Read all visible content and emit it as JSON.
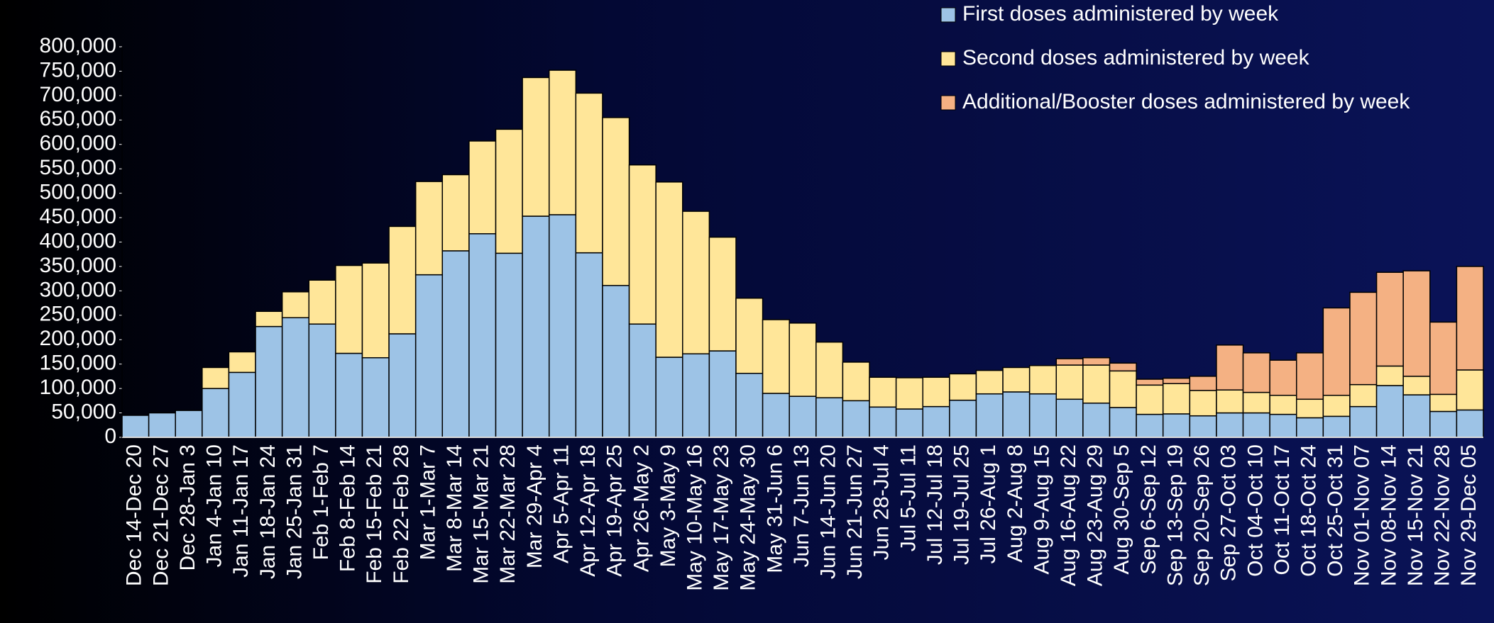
{
  "chart_data": {
    "type": "stacked_bar",
    "categories": [
      "Dec 14-Dec 20",
      "Dec 21-Dec 27",
      "Dec 28-Jan 3",
      "Jan 4-Jan 10",
      "Jan 11-Jan 17",
      "Jan 18-Jan 24",
      "Jan 25-Jan 31",
      "Feb 1-Feb 7",
      "Feb 8-Feb 14",
      "Feb 15-Feb 21",
      "Feb 22-Feb 28",
      "Mar 1-Mar 7",
      "Mar 8-Mar 14",
      "Mar 15-Mar 21",
      "Mar 22-Mar 28",
      "Mar 29-Apr 4",
      "Apr 5-Apr 11",
      "Apr 12-Apr 18",
      "Apr 19-Apr 25",
      "Apr 26-May 2",
      "May 3-May 9",
      "May 10-May 16",
      "May 17-May 23",
      "May 24-May 30",
      "May 31-Jun 6",
      "Jun 7-Jun 13",
      "Jun 14-Jun 20",
      "Jun 21-Jun 27",
      "Jun 28-Jul 4",
      "Jul 5-Jul 11",
      "Jul 12-Jul 18",
      "Jul 19-Jul 25",
      "Jul 26-Aug 1",
      "Aug 2-Aug 8",
      "Aug 9-Aug 15",
      "Aug 16-Aug 22",
      "Aug 23-Aug 29",
      "Aug 30-Sep 5",
      "Sep 6-Sep 12",
      "Sep 13-Sep 19",
      "Sep 20-Sep 26",
      "Sep 27-Oct 03",
      "Oct 04-Oct 10",
      "Oct 11-Oct 17",
      "Oct 18-Oct 24",
      "Oct 25-Oct 31",
      "Nov 01-Nov 07",
      "Nov 08-Nov 14",
      "Nov 15-Nov 21",
      "Nov 22-Nov 28",
      "Nov 29-Dec 05"
    ],
    "series": [
      {
        "name": "First doses administered by week",
        "color": "#9dc3e6",
        "values": [
          45000,
          50000,
          55000,
          100000,
          133000,
          227000,
          245000,
          232000,
          172000,
          163000,
          212000,
          333000,
          382000,
          417000,
          377000,
          453000,
          456000,
          378000,
          311000,
          232000,
          164000,
          171000,
          177000,
          131000,
          90000,
          84000,
          81000,
          75000,
          62000,
          58000,
          63000,
          76000,
          89000,
          93000,
          89000,
          78000,
          70000,
          61000,
          47000,
          48000,
          44000,
          50000,
          50000,
          47000,
          40000,
          43000,
          63000,
          106000,
          87000,
          53000,
          56000
        ]
      },
      {
        "name": "Second doses administered by week",
        "color": "#ffe699",
        "values": [
          0,
          0,
          0,
          43000,
          42000,
          31000,
          53000,
          90000,
          180000,
          194000,
          220000,
          191000,
          156000,
          190000,
          254000,
          284000,
          296000,
          327000,
          344000,
          326000,
          359000,
          292000,
          233000,
          154000,
          151000,
          150000,
          114000,
          79000,
          61000,
          64000,
          60000,
          54000,
          48000,
          50000,
          58000,
          70000,
          78000,
          75000,
          60000,
          62000,
          52000,
          47000,
          42000,
          39000,
          38000,
          43000,
          45000,
          40000,
          38000,
          35000,
          82000
        ]
      },
      {
        "name": "Additional/Booster doses administered by week",
        "color": "#f4b183",
        "values": [
          0,
          0,
          0,
          0,
          0,
          0,
          0,
          0,
          0,
          0,
          0,
          0,
          0,
          0,
          0,
          0,
          0,
          0,
          0,
          0,
          0,
          0,
          0,
          0,
          0,
          0,
          0,
          0,
          0,
          0,
          0,
          0,
          0,
          0,
          0,
          13000,
          15000,
          16000,
          12000,
          11000,
          29000,
          92000,
          81000,
          72000,
          95000,
          179000,
          189000,
          192000,
          216000,
          148000,
          212000
        ]
      }
    ],
    "ylim": [
      0,
      800000
    ],
    "yticks": [
      0,
      {
        "value": 50000,
        "label": "50,000"
      },
      {
        "value": 100000,
        "label": "100,000"
      },
      {
        "value": 150000,
        "label": "150,000"
      },
      {
        "value": 200000,
        "label": "200,000"
      },
      {
        "value": 250000,
        "label": "250,000"
      },
      {
        "value": 300000,
        "label": "300,000"
      },
      {
        "value": 350000,
        "label": "350,000"
      },
      {
        "value": 400000,
        "label": "400,000"
      },
      {
        "value": 450000,
        "label": "450,000"
      },
      {
        "value": 500000,
        "label": "500,000"
      },
      {
        "value": 550000,
        "label": "550,000"
      },
      {
        "value": 600000,
        "label": "600,000"
      },
      {
        "value": 650000,
        "label": "650,000"
      },
      {
        "value": 700000,
        "label": "700,000"
      },
      {
        "value": 750000,
        "label": "750,000"
      },
      {
        "value": 800000,
        "label": "800,000"
      }
    ],
    "legend": "top-right"
  }
}
